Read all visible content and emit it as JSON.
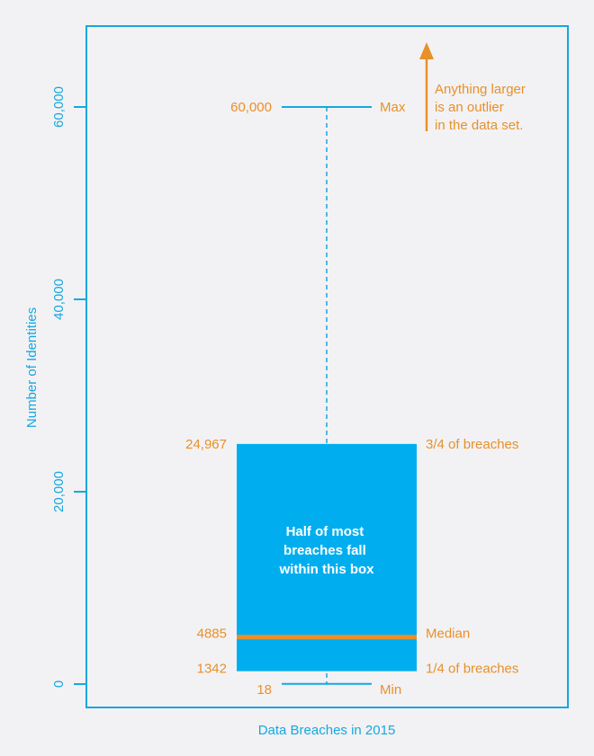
{
  "chart_data": {
    "type": "box",
    "xlabel": "Data Breaches in 2015",
    "ylabel": "Number of Identities",
    "ylim": [
      0,
      60000
    ],
    "yticks": [
      {
        "value": 0,
        "label": "0"
      },
      {
        "value": 20000,
        "label": "20,000"
      },
      {
        "value": 40000,
        "label": "40,000"
      },
      {
        "value": 60000,
        "label": "60,000"
      }
    ],
    "box": {
      "min": 18,
      "q1": 1342,
      "median": 4885,
      "q3": 24967,
      "max": 60000
    },
    "value_labels": {
      "max": "60,000",
      "q3": "24,967",
      "median": "4885",
      "q1": "1342",
      "min": "18"
    },
    "stat_labels": {
      "max": "Max",
      "q3": "3/4 of breaches",
      "median": "Median",
      "q1": "1/4 of breaches",
      "min": "Min"
    },
    "box_annotation": [
      "Half of most",
      "breaches fall",
      "within this box"
    ],
    "outlier_note": [
      "Anything larger",
      "is an outlier",
      "in the data set."
    ]
  },
  "colors": {
    "accent": "#17a7e0",
    "highlight": "#e8902a",
    "background": "#f2f2f4",
    "box_text": "#ffffff"
  }
}
